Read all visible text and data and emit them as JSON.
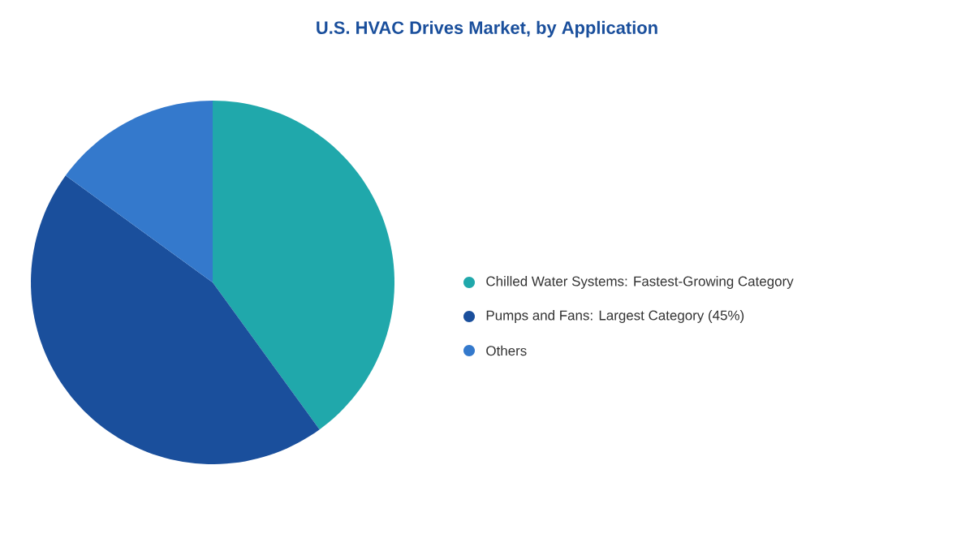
{
  "chart_data": {
    "type": "pie",
    "title": "U.S. HVAC Drives Market, by Application",
    "categories": [
      "Chilled Water Systems:  Fastest-Growing Category",
      "Pumps and Fans:  Largest Category (45%)",
      "Others"
    ],
    "values": [
      40,
      45,
      15
    ],
    "colors": [
      "#20a8ab",
      "#1a4f9c",
      "#3479cc"
    ],
    "legend": "right"
  }
}
